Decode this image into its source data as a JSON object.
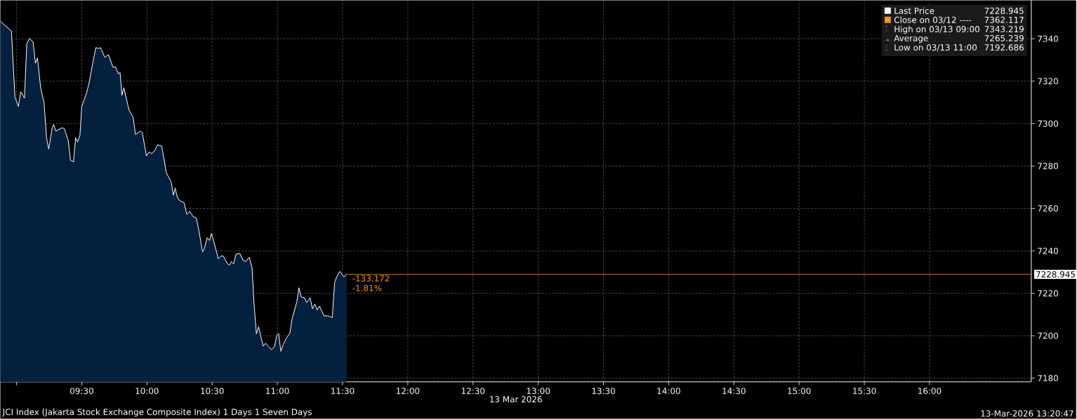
{
  "chart_data": {
    "type": "area",
    "title": "JCI Index (Jakarta Stock Exchange Composite Index) 1 Days 1 Seven Days",
    "xlabel": "13 Mar 2026",
    "x": [
      8.876,
      8.961,
      8.988,
      9.014,
      9.032,
      9.061,
      9.079,
      9.1,
      9.127,
      9.145,
      9.16,
      9.185,
      9.211,
      9.23,
      9.247,
      9.274,
      9.285,
      9.301,
      9.348,
      9.366,
      9.396,
      9.414,
      9.437,
      9.453,
      9.468,
      9.486,
      9.5,
      9.536,
      9.558,
      9.584,
      9.608,
      9.629,
      9.644,
      9.677,
      9.704,
      9.74,
      9.758,
      9.781,
      9.794,
      9.808,
      9.823,
      9.862,
      9.894,
      9.912,
      9.952,
      9.964,
      9.996,
      10.018,
      10.036,
      10.059,
      10.081,
      10.113,
      10.149,
      10.185,
      10.203,
      10.217,
      10.233,
      10.253,
      10.285,
      10.306,
      10.328,
      10.355,
      10.378,
      10.399,
      10.426,
      10.439,
      10.462,
      10.48,
      10.495,
      10.52,
      10.547,
      10.57,
      10.588,
      10.615,
      10.633,
      10.647,
      10.665,
      10.683,
      10.713,
      10.737,
      10.758,
      10.785,
      10.806,
      10.821,
      10.839,
      10.856,
      10.875,
      10.892,
      10.91,
      10.928,
      10.955,
      10.977,
      10.996,
      11.009,
      11.027,
      11.045,
      11.072,
      11.095,
      11.113,
      11.149,
      11.165,
      11.183,
      11.206,
      11.224,
      11.251,
      11.269,
      11.287,
      11.305,
      11.323,
      11.358,
      11.385,
      11.421,
      11.439,
      11.453,
      11.478,
      11.511,
      11.53
    ],
    "series": [
      {
        "name": "Last Price",
        "color": "#03203f",
        "values": [
          7348.2,
          7343.6,
          7312.5,
          7308.1,
          7315.0,
          7312.0,
          7337.8,
          7340.2,
          7338.4,
          7328.5,
          7330.9,
          7316.9,
          7309.8,
          7293.3,
          7288.0,
          7298.2,
          7299.6,
          7296.5,
          7298.0,
          7297.7,
          7292.2,
          7282.8,
          7282.0,
          7293.3,
          7291.3,
          7294.4,
          7308.1,
          7314.2,
          7319.6,
          7328.5,
          7335.8,
          7335.4,
          7335.8,
          7331.2,
          7332.5,
          7326.5,
          7326.8,
          7323.5,
          7324.1,
          7313.3,
          7316.9,
          7306.4,
          7303.0,
          7294.9,
          7296.5,
          7295.8,
          7284.8,
          7286.7,
          7285.9,
          7287.2,
          7290.0,
          7289.4,
          7276.8,
          7272.6,
          7266.3,
          7269.6,
          7265.2,
          7263.6,
          7262.7,
          7257.2,
          7258.6,
          7256.1,
          7255.6,
          7249.3,
          7239.6,
          7241.0,
          7246.2,
          7244.9,
          7248.2,
          7242.7,
          7236.3,
          7237.7,
          7237.4,
          7234.1,
          7233.3,
          7235.0,
          7233.9,
          7238.5,
          7238.8,
          7235.5,
          7235.0,
          7237.0,
          7231.9,
          7215.2,
          7200.9,
          7204.2,
          7199.2,
          7195.1,
          7196.5,
          7195.2,
          7193.4,
          7194.8,
          7200.3,
          7201.1,
          7192.7,
          7195.9,
          7199.2,
          7201.1,
          7208.0,
          7216.0,
          7222.6,
          7218.3,
          7217.9,
          7215.7,
          7217.9,
          7212.7,
          7215.0,
          7212.1,
          7213.9,
          7209.3,
          7209.4,
          7208.6,
          7225.1,
          7227.5,
          7230.4,
          7227.8,
          7228.945
        ]
      }
    ],
    "xlim": [
      8.876,
      16.78
    ],
    "xticks": [
      {
        "value": 9,
        "label": null
      },
      {
        "value": 9.5,
        "label": "09:30"
      },
      {
        "value": 10,
        "label": "10:00"
      },
      {
        "value": 10.5,
        "label": "10:30"
      },
      {
        "value": 11,
        "label": "11:00"
      },
      {
        "value": 11.5,
        "label": "11:30"
      },
      {
        "value": 12,
        "label": "12:00"
      },
      {
        "value": 12.5,
        "label": "12:30"
      },
      {
        "value": 13,
        "label": "13:00"
      },
      {
        "value": 13.5,
        "label": "13:30"
      },
      {
        "value": 14,
        "label": "14:00"
      },
      {
        "value": 14.5,
        "label": "14:30"
      },
      {
        "value": 15,
        "label": "15:00"
      },
      {
        "value": 15.5,
        "label": "15:30"
      },
      {
        "value": 16,
        "label": "16:00"
      }
    ],
    "ylim": [
      7178.3,
      7358.1
    ],
    "yticks": [
      7180,
      7200,
      7220,
      7240,
      7260,
      7280,
      7300,
      7320,
      7340
    ],
    "grid": true,
    "legend": "top right",
    "ref_lines": [
      {
        "axis": "y",
        "value": 7228.945,
        "label": "7228.945",
        "color": "#f7931e"
      }
    ],
    "annotations": [
      "-133.172",
      "-1.81%",
      "Close on 03/12 ----",
      "7362.117",
      "High on 03/13 09:00",
      "7343.219",
      "Average",
      "7265.239",
      "Low on 03/13 11:00",
      "7192.686",
      "13-Mar-2026 13:20:47"
    ]
  }
}
